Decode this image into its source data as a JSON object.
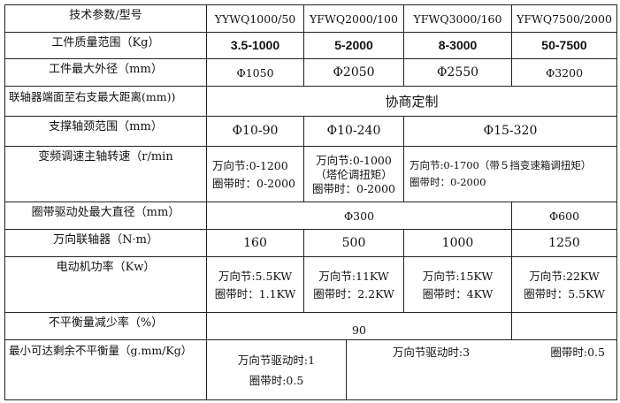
{
  "header": {
    "label": "技术参数/型号",
    "models": [
      "YYWQ1000/50",
      "YFWQ2000/100",
      "YFWQ3000/160",
      "YFWQ7500/2000"
    ]
  },
  "mass": {
    "label": "工件质量范围（Kg）",
    "values": [
      "3.5-1000",
      "5-2000",
      "8-3000",
      "50-7500"
    ]
  },
  "diameter": {
    "label": "工件最大外径（mm）",
    "values": [
      "Φ1050",
      "Φ2050",
      "Φ2550",
      "Φ3200"
    ]
  },
  "distance": {
    "label": "联轴器端面至右支最大距离(mm))",
    "value": "协商定制"
  },
  "journal": {
    "label": "支撑轴颈范围（mm）",
    "values": [
      "Φ10-90",
      "Φ10-240",
      "Φ15-320"
    ]
  },
  "speed": {
    "label": "变频调速主轴转速（r/min",
    "c1": [
      "万向节:0-1200",
      "圈带时：0-2000"
    ],
    "c2": [
      "万向节:0-1000",
      "（塔伦调扭矩）",
      "圈带时：0-2000"
    ],
    "c3": [
      "万向节:0-1700（带５挡变速箱调扭矩）",
      "圈带时：0-2000"
    ]
  },
  "ring": {
    "label": "圈带驱动处最大直径（mm）",
    "values": [
      "Φ300",
      "Φ600"
    ]
  },
  "coupling": {
    "label": "万向联轴器（N·m）",
    "values": [
      "160",
      "500",
      "1000",
      "1250"
    ]
  },
  "power": {
    "label": "电动机功率（Kw）",
    "values": [
      [
        "万向节:5.5KW",
        "圈带时：1.1KW"
      ],
      [
        "万向节:11KW",
        "圈带时：2.2KW"
      ],
      [
        "万向节:15KW",
        "圈带时：4KW"
      ],
      [
        "万向节:22KW",
        "圈带时：5.5KW"
      ]
    ]
  },
  "reduction": {
    "label": "不平衡量减少率（%）",
    "value": "90",
    "last": ""
  },
  "residual": {
    "label": "最小可达剩余不平衡量（g.mm/Kg）",
    "left": [
      "万向节驱动时:1",
      "圈带时:0.5"
    ],
    "right_a": "万向节驱动时:3",
    "right_b": "圈带时:0.5"
  }
}
